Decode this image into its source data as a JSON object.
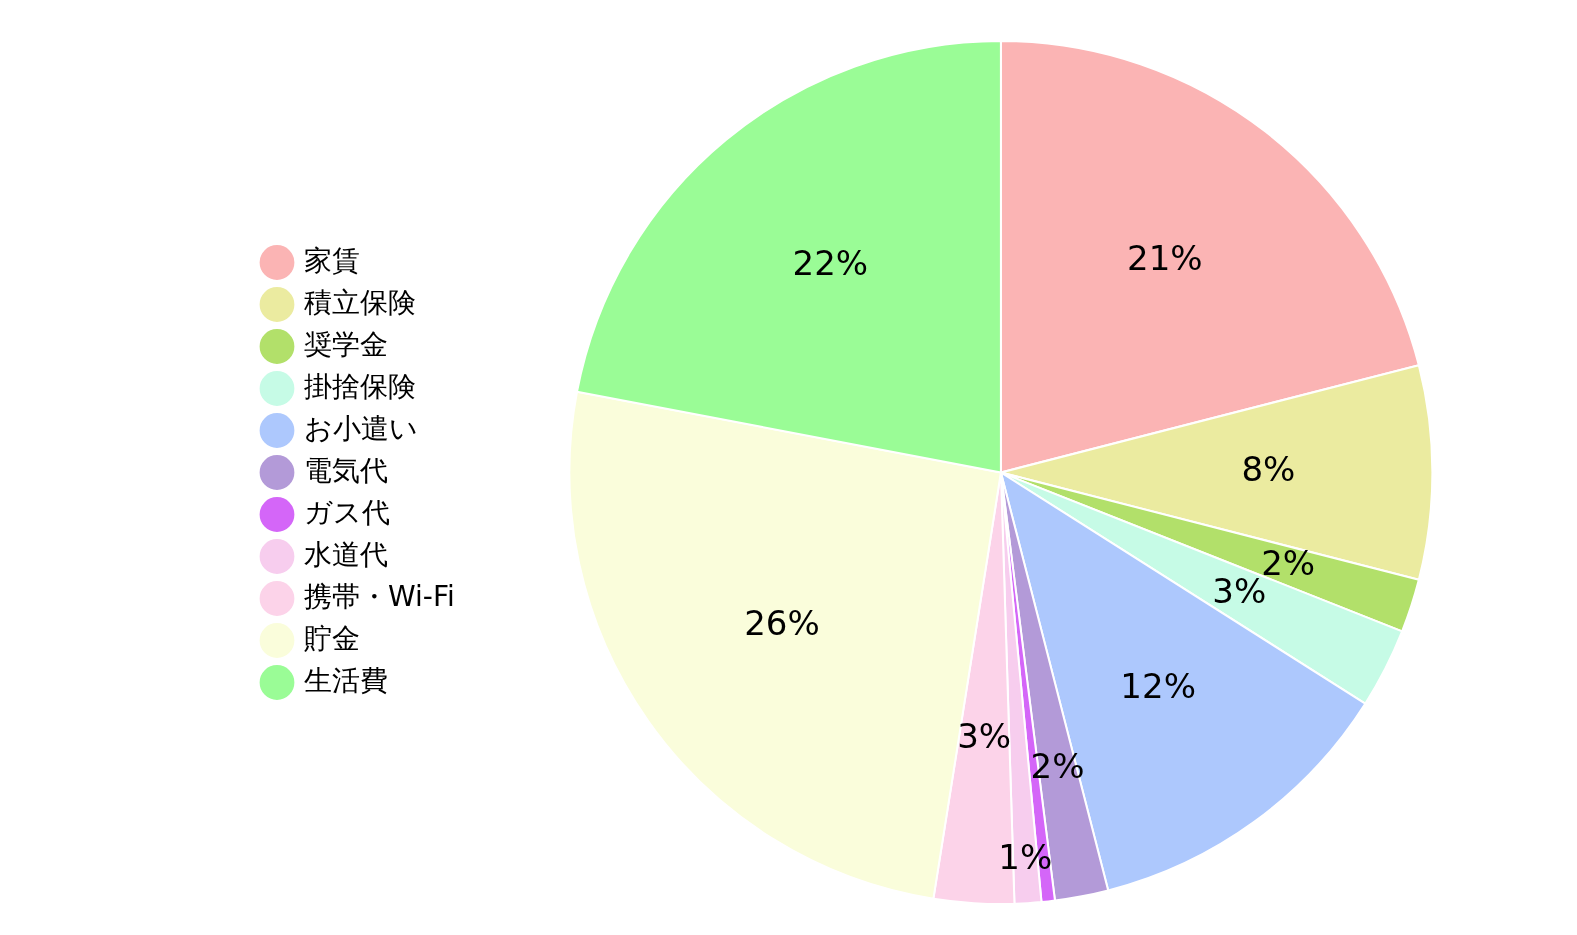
{
  "chart_data": {
    "type": "pie",
    "categories": [
      "家賃",
      "積立保険",
      "奨学金",
      "掛捨保険",
      "お小遣い",
      "電気代",
      "ガス代",
      "水道代",
      "携帯・Wi-Fi",
      "貯金",
      "生活費"
    ],
    "values": [
      21,
      8,
      2,
      3,
      12,
      2,
      0.5,
      1,
      3,
      25.5,
      22
    ],
    "colors": [
      "#fbb4b4",
      "#ebeba0",
      "#b2e06a",
      "#c6fbe6",
      "#adc8fd",
      "#b39ad8",
      "#d466f8",
      "#f7cdee",
      "#fcd3e9",
      "#fafddb",
      "#9afc96"
    ],
    "value_labels": [
      "21%",
      "8%",
      "2%",
      "3%",
      "12%",
      "2%",
      null,
      "1%",
      "3%",
      "26%",
      "22%"
    ],
    "legend": "left"
  }
}
